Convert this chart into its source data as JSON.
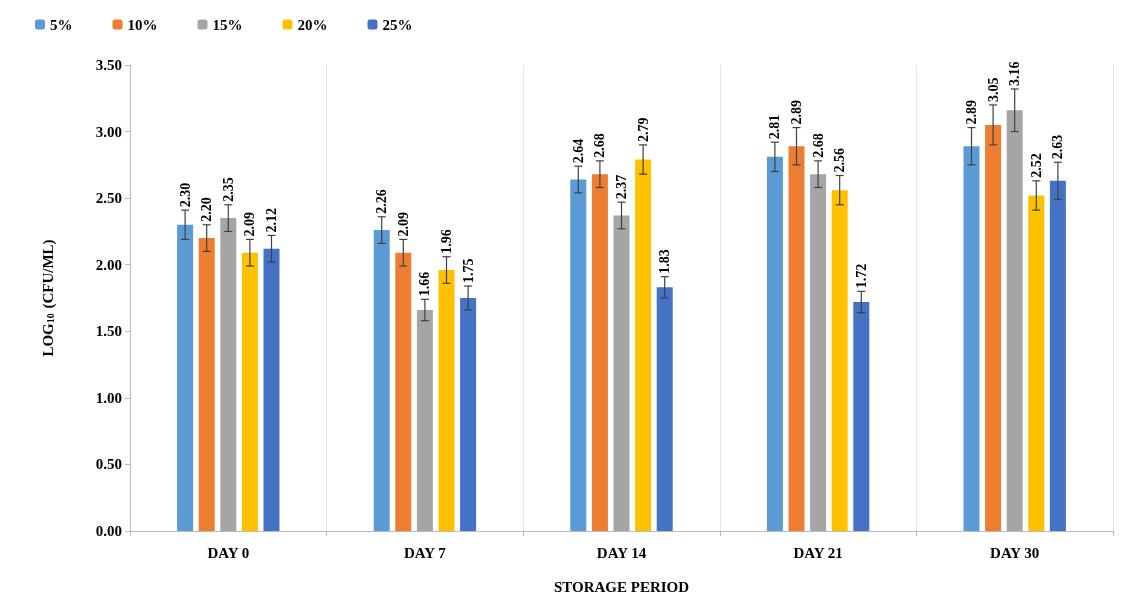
{
  "chart_data": {
    "type": "bar",
    "xlabel": "STORAGE PERIOD",
    "ylabel": "LOG$_{10}$ (CFU/ML)",
    "categories": [
      "DAY 0",
      "DAY 7",
      "DAY 14",
      "DAY 21",
      "DAY 30"
    ],
    "series": [
      {
        "name": "5%",
        "color": "#5b9bd5",
        "values": [
          2.3,
          2.26,
          2.64,
          2.81,
          2.89
        ],
        "errors": [
          0.11,
          0.1,
          0.1,
          0.11,
          0.14
        ],
        "value_labels": [
          "2.30",
          "2.26",
          "2.64",
          "2.81",
          "2.89"
        ]
      },
      {
        "name": "10%",
        "color": "#ed7d31",
        "values": [
          2.2,
          2.09,
          2.68,
          2.89,
          3.05
        ],
        "errors": [
          0.1,
          0.1,
          0.1,
          0.14,
          0.15
        ],
        "value_labels": [
          "2.20",
          "2.09",
          "2.68",
          "2.89",
          "3.05"
        ]
      },
      {
        "name": "15%",
        "color": "#a5a5a5",
        "values": [
          2.35,
          1.66,
          2.37,
          2.68,
          3.16
        ],
        "errors": [
          0.1,
          0.08,
          0.1,
          0.1,
          0.16
        ],
        "value_labels": [
          "2.35",
          "1.66",
          "2.37",
          "2.68",
          "3.16"
        ]
      },
      {
        "name": "20%",
        "color": "#ffc000",
        "values": [
          2.09,
          1.96,
          2.79,
          2.56,
          2.52
        ],
        "errors": [
          0.1,
          0.1,
          0.11,
          0.11,
          0.11
        ],
        "value_labels": [
          "2.09",
          "1.96",
          "2.79",
          "2.56",
          "2.52"
        ]
      },
      {
        "name": "25%",
        "color": "#4472c4",
        "values": [
          2.12,
          1.75,
          1.83,
          1.72,
          2.63
        ],
        "errors": [
          0.1,
          0.09,
          0.08,
          0.08,
          0.14
        ],
        "value_labels": [
          "2.12",
          "1.75",
          "1.83",
          "1.72",
          "2.63"
        ]
      }
    ],
    "ylim": [
      0,
      3.5
    ],
    "yticks": [
      {
        "value": 0,
        "label": "0.00"
      },
      {
        "value": 0.5,
        "label": "0.50"
      },
      {
        "value": 1,
        "label": "1.00"
      },
      {
        "value": 1.5,
        "label": "1.50"
      },
      {
        "value": 2,
        "label": "2.00"
      },
      {
        "value": 2.5,
        "label": "2.50"
      },
      {
        "value": 3,
        "label": "3.00"
      },
      {
        "value": 3.5,
        "label": "3.50"
      }
    ],
    "grid": "x",
    "legend": "top left"
  }
}
